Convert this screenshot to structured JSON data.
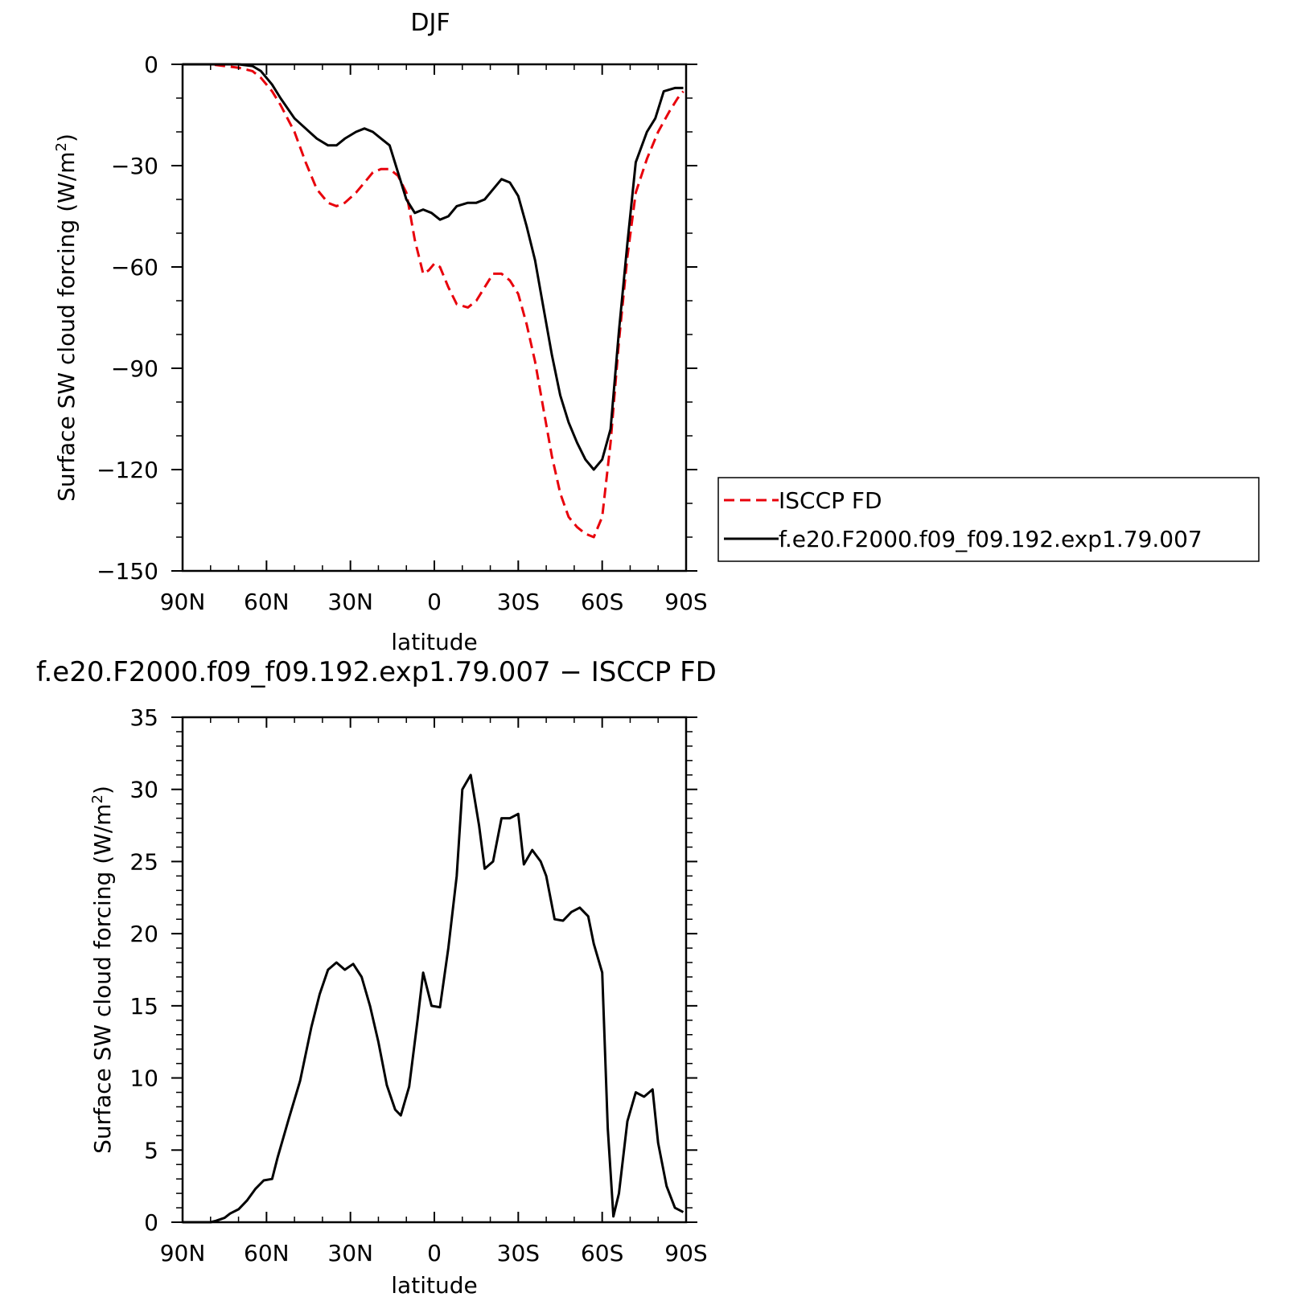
{
  "chart_data": [
    {
      "type": "line",
      "title": "DJF",
      "xlabel": "latitude",
      "ylabel": "Surface SW cloud forcing (W/m²)",
      "xlim": [
        -90,
        90
      ],
      "ylim": [
        -150,
        0
      ],
      "x_tick_values": [
        -90,
        -60,
        -30,
        0,
        30,
        60,
        90
      ],
      "x_tick_labels": [
        "90N",
        "60N",
        "30N",
        "0",
        "30S",
        "60S",
        "90S"
      ],
      "y_tick_values": [
        0,
        -30,
        -60,
        -90,
        -120,
        -150
      ],
      "y_tick_labels": [
        "0",
        "−30",
        "−60",
        "−90",
        "−120",
        "−150"
      ],
      "legend": {
        "placement": "right-outside",
        "entries": [
          "ISCCP FD",
          "f.e20.F2000.f09_f09.192.exp1.79.007"
        ]
      },
      "series": [
        {
          "name": "ISCCP FD",
          "color": "#e8000b",
          "dash": "dashed",
          "x": [
            -90,
            -80,
            -75,
            -70,
            -65,
            -62,
            -58,
            -55,
            -50,
            -46,
            -42,
            -38,
            -35,
            -32,
            -28,
            -25,
            -22,
            -19,
            -16,
            -13,
            -10,
            -7,
            -4,
            -2,
            0,
            2,
            5,
            8,
            12,
            15,
            18,
            21,
            24,
            27,
            30,
            33,
            36,
            39,
            42,
            45,
            48,
            51,
            54,
            57,
            60,
            63,
            66,
            69,
            72,
            76,
            80,
            84,
            87,
            89
          ],
          "y": [
            0,
            0,
            -0.5,
            -1,
            -2,
            -4,
            -8,
            -12,
            -20,
            -29,
            -37,
            -41,
            -42,
            -41,
            -38,
            -35,
            -32,
            -31,
            -31,
            -33,
            -38,
            -52,
            -62,
            -61,
            -59,
            -60,
            -66,
            -71,
            -72,
            -70,
            -66,
            -62,
            -62,
            -64,
            -68,
            -77,
            -88,
            -102,
            -116,
            -127,
            -134,
            -137,
            -139,
            -140,
            -134,
            -112,
            -82,
            -57,
            -38,
            -28,
            -20,
            -14,
            -10,
            -8
          ]
        },
        {
          "name": "f.e20.F2000.f09_f09.192.exp1.79.007",
          "color": "#000000",
          "dash": "solid",
          "x": [
            -90,
            -80,
            -75,
            -70,
            -65,
            -62,
            -58,
            -55,
            -50,
            -46,
            -42,
            -38,
            -35,
            -32,
            -28,
            -25,
            -22,
            -19,
            -16,
            -13,
            -10,
            -7,
            -4,
            -1,
            2,
            5,
            8,
            12,
            15,
            18,
            21,
            24,
            27,
            30,
            33,
            36,
            39,
            42,
            45,
            48,
            51,
            54,
            57,
            60,
            63,
            66,
            69,
            72,
            76,
            79,
            82,
            86,
            89
          ],
          "y": [
            0,
            0,
            0,
            0,
            -0.5,
            -2,
            -6,
            -10,
            -16,
            -19,
            -22,
            -24,
            -24,
            -22,
            -20,
            -19,
            -20,
            -22,
            -24,
            -32,
            -40,
            -44,
            -43,
            -44,
            -46,
            -45,
            -42,
            -41,
            -41,
            -40,
            -37,
            -34,
            -35,
            -39,
            -48,
            -58,
            -72,
            -86,
            -98,
            -106,
            -112,
            -117,
            -120,
            -117,
            -108,
            -79,
            -53,
            -29,
            -20,
            -16,
            -8,
            -7,
            -7
          ]
        }
      ]
    },
    {
      "type": "line",
      "title": "f.e20.F2000.f09_f09.192.exp1.79.007 − ISCCP FD",
      "xlabel": "latitude",
      "ylabel": "Surface SW cloud forcing (W/m²)",
      "xlim": [
        -90,
        90
      ],
      "ylim": [
        0,
        35
      ],
      "x_tick_values": [
        -90,
        -60,
        -30,
        0,
        30,
        60,
        90
      ],
      "x_tick_labels": [
        "90N",
        "60N",
        "30N",
        "0",
        "30S",
        "60S",
        "90S"
      ],
      "y_tick_values": [
        0,
        5,
        10,
        15,
        20,
        25,
        30,
        35
      ],
      "y_tick_labels": [
        "0",
        "5",
        "10",
        "15",
        "20",
        "25",
        "30",
        "35"
      ],
      "series": [
        {
          "color": "#000000",
          "dash": "solid",
          "x": [
            -90,
            -80,
            -78,
            -75,
            -73,
            -70,
            -67,
            -64,
            -61,
            -58,
            -56,
            -52,
            -48,
            -44,
            -41,
            -38,
            -35,
            -32,
            -29,
            -26,
            -23,
            -20,
            -17,
            -14,
            -12,
            -9,
            -6,
            -4,
            -1,
            2,
            5,
            8,
            10,
            13,
            16,
            18,
            21,
            24,
            27,
            30,
            32,
            35,
            38,
            40,
            43,
            46,
            49,
            52,
            55,
            57,
            60,
            62,
            64,
            66,
            69,
            72,
            75,
            78,
            80,
            83,
            86,
            89
          ],
          "y": [
            0,
            0,
            0.1,
            0.3,
            0.6,
            0.9,
            1.5,
            2.3,
            2.9,
            3.0,
            4.5,
            7.2,
            9.8,
            13.5,
            15.8,
            17.5,
            18.0,
            17.5,
            17.9,
            17.0,
            15.0,
            12.5,
            9.5,
            7.8,
            7.4,
            9.4,
            14.0,
            17.3,
            15.0,
            14.9,
            19.0,
            24.0,
            30.0,
            31.0,
            27.5,
            24.5,
            25.0,
            28.0,
            28.0,
            28.3,
            24.8,
            25.8,
            25.0,
            24.0,
            21.0,
            20.9,
            21.5,
            21.8,
            21.2,
            19.3,
            17.3,
            6.5,
            0.4,
            2.0,
            7.0,
            9.0,
            8.7,
            9.2,
            5.5,
            2.5,
            1.0,
            0.7
          ]
        }
      ]
    }
  ]
}
